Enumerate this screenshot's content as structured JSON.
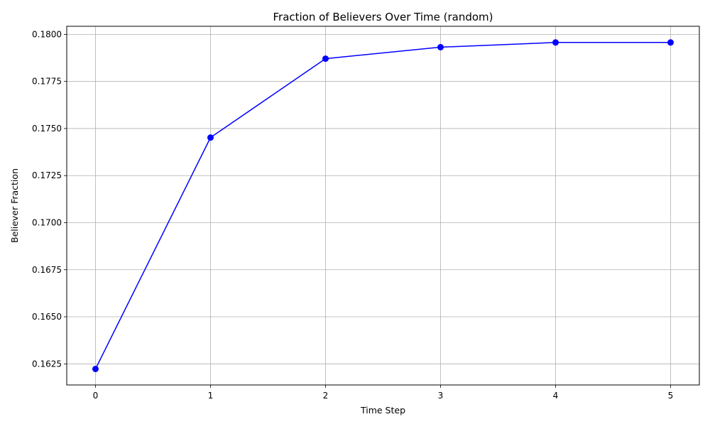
{
  "chart_data": {
    "type": "line",
    "title": "Fraction of Believers Over Time (random)",
    "xlabel": "Time Step",
    "ylabel": "Believer Fraction",
    "x": [
      0,
      1,
      2,
      3,
      4,
      5
    ],
    "series": [
      {
        "values": [
          0.16223,
          0.17452,
          0.17871,
          0.17932,
          0.17957,
          0.17957
        ],
        "color": "#0000ff",
        "marker": "circle"
      }
    ],
    "xlim": [
      -0.25,
      5.25
    ],
    "ylim": [
      0.16138,
      0.18043
    ],
    "x_ticks": [
      0,
      1,
      2,
      3,
      4,
      5
    ],
    "x_tick_labels": [
      "0",
      "1",
      "2",
      "3",
      "4",
      "5"
    ],
    "y_ticks": [
      0.1625,
      0.165,
      0.1675,
      0.17,
      0.1725,
      0.175,
      0.1775,
      0.18
    ],
    "y_tick_labels": [
      "0.1625",
      "0.1650",
      "0.1675",
      "0.1700",
      "0.1725",
      "0.1750",
      "0.1775",
      "0.1800"
    ],
    "grid": true,
    "grid_color": "#b0b0b0",
    "legend": false
  }
}
